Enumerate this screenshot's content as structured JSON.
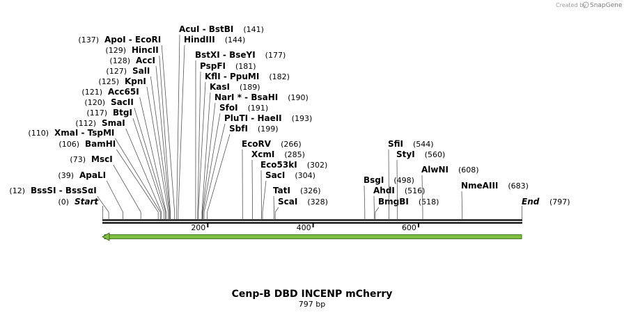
{
  "watermark": {
    "prefix": "Created by",
    "name": "SnapGene"
  },
  "plasmid": {
    "name": "Cenp-B DBD INCENP mCherry",
    "size_label": "797 bp",
    "length": 797
  },
  "scale": {
    "ticks": [
      200,
      400,
      600
    ]
  },
  "start": {
    "pos": 0,
    "num": "(0)",
    "name": "Start"
  },
  "end": {
    "pos": 797,
    "num": "(797)",
    "name": "End"
  },
  "sites": [
    {
      "pos": 12,
      "num": "(12)",
      "name": "BssSI  - BssSαI"
    },
    {
      "pos": 39,
      "num": "(39)",
      "name": "ApaLI"
    },
    {
      "pos": 73,
      "num": "(73)",
      "name": "MscI"
    },
    {
      "pos": 106,
      "num": "(106)",
      "name": "BamHI"
    },
    {
      "pos": 110,
      "num": "(110)",
      "name": "XmaI  - TspMI"
    },
    {
      "pos": 112,
      "num": "(112)",
      "name": "SmaI"
    },
    {
      "pos": 117,
      "num": "(117)",
      "name": "BtgI"
    },
    {
      "pos": 120,
      "num": "(120)",
      "name": "SacII"
    },
    {
      "pos": 121,
      "num": "(121)",
      "name": "Acc65I"
    },
    {
      "pos": 125,
      "num": "(125)",
      "name": "KpnI"
    },
    {
      "pos": 127,
      "num": "(127)",
      "name": "SalI"
    },
    {
      "pos": 128,
      "num": "(128)",
      "name": "AccI"
    },
    {
      "pos": 129,
      "num": "(129)",
      "name": "HincII"
    },
    {
      "pos": 137,
      "num": "(137)",
      "name": "ApoI  - EcoRI"
    },
    {
      "pos": 141,
      "num": "(141)",
      "name": "AcuI  - BstBI"
    },
    {
      "pos": 144,
      "num": "(144)",
      "name": "HindIII"
    },
    {
      "pos": 177,
      "num": "(177)",
      "name": "BstXI  - BseYI"
    },
    {
      "pos": 181,
      "num": "(181)",
      "name": "PspFI"
    },
    {
      "pos": 182,
      "num": "(182)",
      "name": "KflI  - PpuMI"
    },
    {
      "pos": 189,
      "num": "(189)",
      "name": "KasI"
    },
    {
      "pos": 190,
      "num": "(190)",
      "name": "NarI *  - BsaHI"
    },
    {
      "pos": 191,
      "num": "(191)",
      "name": "SfoI"
    },
    {
      "pos": 193,
      "num": "(193)",
      "name": "PluTI  - HaeII"
    },
    {
      "pos": 199,
      "num": "(199)",
      "name": "SbfI"
    },
    {
      "pos": 266,
      "num": "(266)",
      "name": "EcoRV"
    },
    {
      "pos": 285,
      "num": "(285)",
      "name": "XcmI"
    },
    {
      "pos": 302,
      "num": "(302)",
      "name": "Eco53kI"
    },
    {
      "pos": 304,
      "num": "(304)",
      "name": "SacI"
    },
    {
      "pos": 326,
      "num": "(326)",
      "name": "TatI"
    },
    {
      "pos": 328,
      "num": "(328)",
      "name": "ScaI"
    },
    {
      "pos": 498,
      "num": "(498)",
      "name": "BsgI"
    },
    {
      "pos": 516,
      "num": "(516)",
      "name": "AhdI"
    },
    {
      "pos": 518,
      "num": "(518)",
      "name": "BmgBI"
    },
    {
      "pos": 544,
      "num": "(544)",
      "name": "SfiI"
    },
    {
      "pos": 560,
      "num": "(560)",
      "name": "StyI"
    },
    {
      "pos": 608,
      "num": "(608)",
      "name": "AlwNI"
    },
    {
      "pos": 683,
      "num": "(683)",
      "name": "NmeAIII"
    }
  ]
}
